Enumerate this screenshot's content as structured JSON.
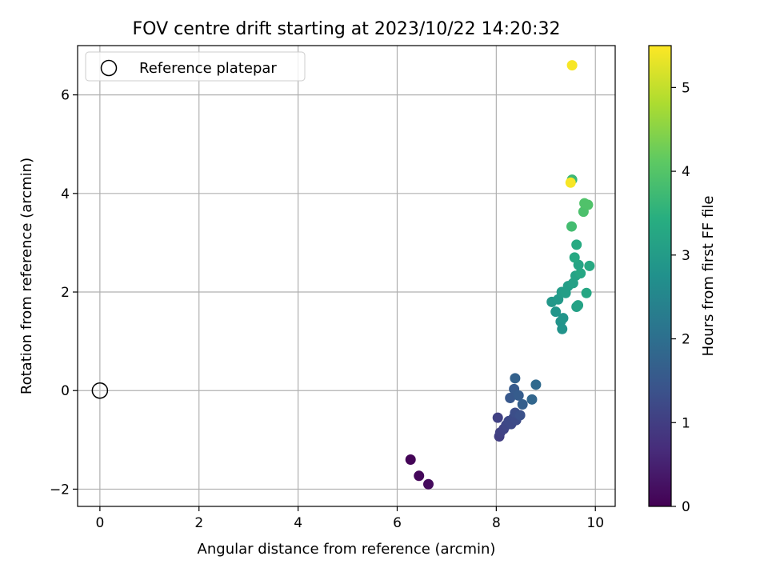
{
  "chart_data": {
    "type": "scatter",
    "title": "FOV centre drift starting at 2023/10/22 14:20:32",
    "xlabel": "Angular distance from reference (arcmin)",
    "ylabel": "Rotation from reference (arcmin)",
    "xlim": [
      -0.45,
      10.4
    ],
    "ylim": [
      -2.35,
      7.0
    ],
    "xticks": [
      0,
      2,
      4,
      6,
      8,
      10
    ],
    "yticks": [
      -2,
      0,
      2,
      4,
      6
    ],
    "xtick_labels": [
      "0",
      "2",
      "4",
      "6",
      "8",
      "10"
    ],
    "ytick_labels": [
      "−2",
      "0",
      "2",
      "4",
      "6"
    ],
    "grid": true,
    "legend": {
      "position": "top-left",
      "label": "Reference platepar"
    },
    "reference_point": {
      "x": 0,
      "y": 0
    },
    "colorbar": {
      "label": "Hours from first FF file",
      "range": [
        0,
        5.5
      ],
      "ticks": [
        0,
        1,
        2,
        3,
        4,
        5
      ],
      "tick_labels": [
        "0",
        "1",
        "2",
        "3",
        "4",
        "5"
      ],
      "colormap": "viridis"
    },
    "points": [
      {
        "x": 6.27,
        "y": -1.4,
        "c": 0.05
      },
      {
        "x": 6.44,
        "y": -1.73,
        "c": 0.1
      },
      {
        "x": 6.63,
        "y": -1.9,
        "c": 0.15
      },
      {
        "x": 8.03,
        "y": -0.55,
        "c": 1.05
      },
      {
        "x": 8.06,
        "y": -0.93,
        "c": 1.0
      },
      {
        "x": 8.08,
        "y": -0.85,
        "c": 1.05
      },
      {
        "x": 8.15,
        "y": -0.78,
        "c": 1.1
      },
      {
        "x": 8.2,
        "y": -0.7,
        "c": 1.15
      },
      {
        "x": 8.25,
        "y": -0.62,
        "c": 1.2
      },
      {
        "x": 8.3,
        "y": -0.68,
        "c": 1.2
      },
      {
        "x": 8.35,
        "y": -0.55,
        "c": 1.25
      },
      {
        "x": 8.4,
        "y": -0.6,
        "c": 1.25
      },
      {
        "x": 8.38,
        "y": -0.45,
        "c": 1.3
      },
      {
        "x": 8.48,
        "y": -0.5,
        "c": 1.35
      },
      {
        "x": 8.28,
        "y": -0.15,
        "c": 1.5
      },
      {
        "x": 8.36,
        "y": 0.03,
        "c": 1.55
      },
      {
        "x": 8.45,
        "y": -0.1,
        "c": 1.6
      },
      {
        "x": 8.53,
        "y": -0.28,
        "c": 1.65
      },
      {
        "x": 8.38,
        "y": 0.25,
        "c": 1.7
      },
      {
        "x": 8.72,
        "y": -0.18,
        "c": 1.8
      },
      {
        "x": 8.8,
        "y": 0.12,
        "c": 1.9
      },
      {
        "x": 9.12,
        "y": 1.8,
        "c": 2.9
      },
      {
        "x": 9.2,
        "y": 1.6,
        "c": 2.85
      },
      {
        "x": 9.25,
        "y": 1.85,
        "c": 2.95
      },
      {
        "x": 9.3,
        "y": 1.4,
        "c": 2.8
      },
      {
        "x": 9.33,
        "y": 1.25,
        "c": 2.8
      },
      {
        "x": 9.35,
        "y": 1.47,
        "c": 2.85
      },
      {
        "x": 9.32,
        "y": 2.0,
        "c": 3.0
      },
      {
        "x": 9.4,
        "y": 1.98,
        "c": 3.05
      },
      {
        "x": 9.45,
        "y": 2.12,
        "c": 3.05
      },
      {
        "x": 9.55,
        "y": 2.18,
        "c": 3.1
      },
      {
        "x": 9.6,
        "y": 2.33,
        "c": 3.15
      },
      {
        "x": 9.62,
        "y": 1.7,
        "c": 3.1
      },
      {
        "x": 9.65,
        "y": 1.73,
        "c": 3.15
      },
      {
        "x": 9.66,
        "y": 2.55,
        "c": 3.2
      },
      {
        "x": 9.7,
        "y": 2.38,
        "c": 3.25
      },
      {
        "x": 9.58,
        "y": 2.7,
        "c": 3.3
      },
      {
        "x": 9.62,
        "y": 2.96,
        "c": 3.35
      },
      {
        "x": 9.88,
        "y": 2.53,
        "c": 3.3
      },
      {
        "x": 9.82,
        "y": 1.98,
        "c": 3.25
      },
      {
        "x": 9.52,
        "y": 3.33,
        "c": 3.8
      },
      {
        "x": 9.76,
        "y": 3.63,
        "c": 3.9
      },
      {
        "x": 9.78,
        "y": 3.8,
        "c": 3.95
      },
      {
        "x": 9.85,
        "y": 3.77,
        "c": 3.95
      },
      {
        "x": 9.53,
        "y": 4.28,
        "c": 3.7
      },
      {
        "x": 9.5,
        "y": 4.22,
        "c": 5.45
      },
      {
        "x": 9.53,
        "y": 6.6,
        "c": 5.45
      }
    ]
  }
}
